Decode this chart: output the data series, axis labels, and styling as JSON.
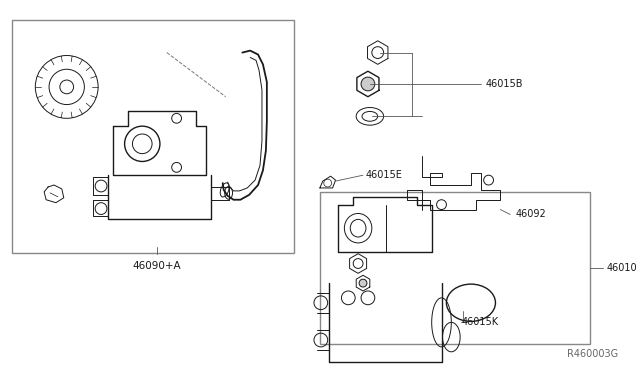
{
  "bg_color": "#ffffff",
  "line_color": "#1a1a1a",
  "fig_width": 6.4,
  "fig_height": 3.72,
  "dpi": 100,
  "ref_code": "R460003G",
  "box1_label": "46090+A",
  "label_46015B": "46015B",
  "label_46092": "46092",
  "label_46015E": "46015E",
  "label_46010": "46010",
  "label_46015K": "46015K"
}
